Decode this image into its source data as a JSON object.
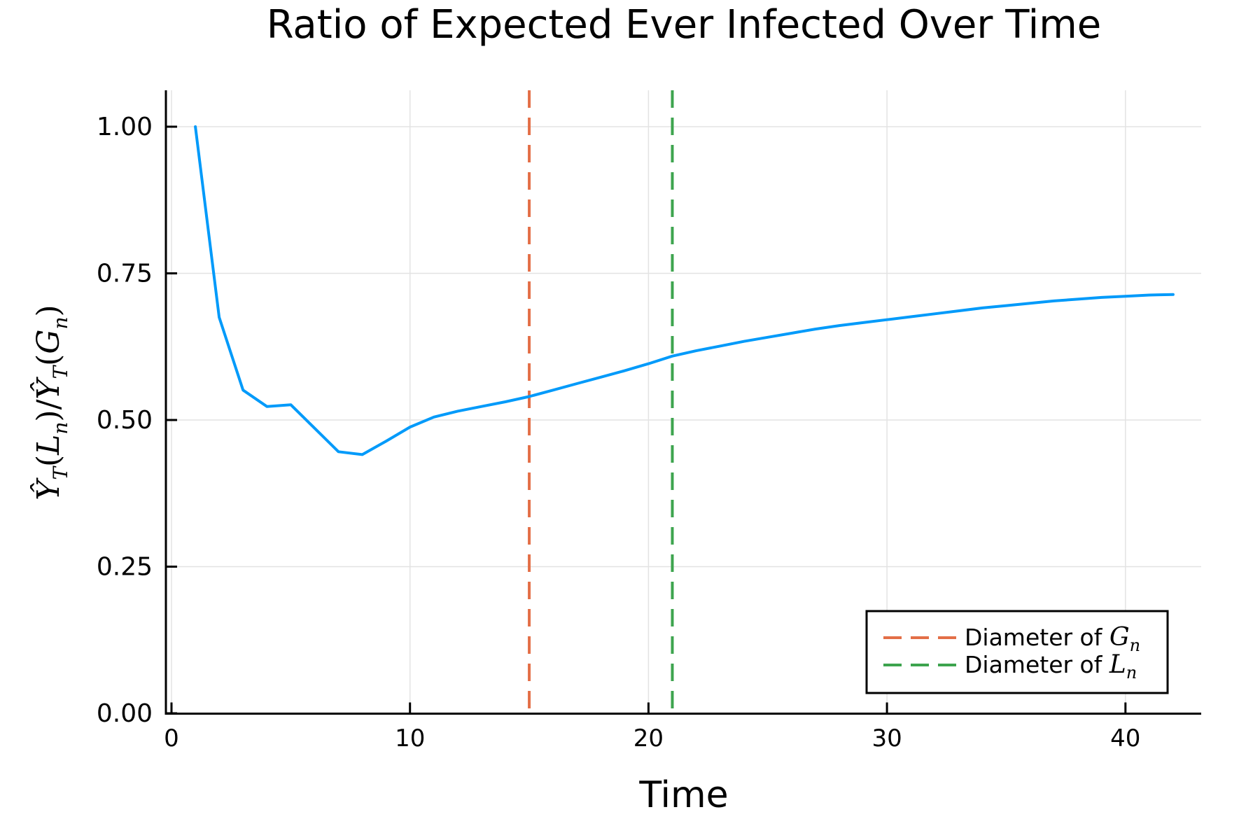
{
  "chart_data": {
    "type": "line",
    "title": "Ratio of Expected Ever Infected Over Time",
    "x_axis": {
      "label": "Time",
      "range_shown": [
        0,
        43
      ],
      "ticks": [
        {
          "value": 0,
          "label": "0"
        },
        {
          "value": 10,
          "label": "10"
        },
        {
          "value": 20,
          "label": "20"
        },
        {
          "value": 30,
          "label": "30"
        },
        {
          "value": 40,
          "label": "40"
        }
      ]
    },
    "y_axis": {
      "label": "Ŷ_T(L_n)/Ŷ_T(G_n)",
      "label_parts": [
        {
          "t": "Ŷ",
          "k": "it"
        },
        {
          "t": "T",
          "k": "sub"
        },
        {
          "t": "(",
          "k": "up"
        },
        {
          "t": "L",
          "k": "it"
        },
        {
          "t": "n",
          "k": "sub"
        },
        {
          "t": ")/",
          "k": "up"
        },
        {
          "t": "Ŷ",
          "k": "it"
        },
        {
          "t": "T",
          "k": "sub"
        },
        {
          "t": "(",
          "k": "up"
        },
        {
          "t": "G",
          "k": "it"
        },
        {
          "t": "n",
          "k": "sub"
        },
        {
          "t": ")",
          "k": "up"
        }
      ],
      "range_shown": [
        0.0,
        1.06
      ],
      "ticks": [
        {
          "value": 0.0,
          "label": "0.00"
        },
        {
          "value": 0.25,
          "label": "0.25"
        },
        {
          "value": 0.5,
          "label": "0.50"
        },
        {
          "value": 0.75,
          "label": "0.75"
        },
        {
          "value": 1.0,
          "label": "1.00"
        }
      ]
    },
    "grid": true,
    "series": [
      {
        "color": "#009AFA",
        "style": "solid",
        "x": [
          1,
          2,
          3,
          4,
          5,
          6,
          7,
          8,
          9,
          10,
          11,
          12,
          13,
          14,
          15,
          16,
          17,
          18,
          19,
          20,
          21,
          22,
          23,
          24,
          25,
          26,
          27,
          28,
          29,
          30,
          31,
          32,
          33,
          34,
          35,
          36,
          37,
          38,
          39,
          40,
          41,
          42
        ],
        "y": [
          1.0,
          0.675,
          0.551,
          0.523,
          0.526,
          0.486,
          0.446,
          0.441,
          0.464,
          0.488,
          0.505,
          0.515,
          0.523,
          0.531,
          0.54,
          0.551,
          0.562,
          0.573,
          0.584,
          0.596,
          0.609,
          0.618,
          0.626,
          0.634,
          0.641,
          0.648,
          0.655,
          0.661,
          0.666,
          0.671,
          0.676,
          0.681,
          0.686,
          0.691,
          0.695,
          0.699,
          0.703,
          0.706,
          0.709,
          0.711,
          0.713,
          0.714
        ]
      }
    ],
    "vlines": [
      {
        "x": 15,
        "color": "#E36F47",
        "style": "dashed",
        "label": "Diameter of Gₙ",
        "label_parts": [
          {
            "t": "Diameter of ",
            "k": "sans"
          },
          {
            "t": "G",
            "k": "it"
          },
          {
            "t": "n",
            "k": "sub"
          }
        ]
      },
      {
        "x": 21,
        "color": "#3DA44E",
        "style": "dashed",
        "label": "Diameter of Lₙ",
        "label_parts": [
          {
            "t": "Diameter of ",
            "k": "sans"
          },
          {
            "t": "L",
            "k": "it"
          },
          {
            "t": "n",
            "k": "sub"
          }
        ]
      }
    ],
    "legend": {
      "position": "bottom-right",
      "background": "#FFFFFF",
      "border_color": "#000000"
    },
    "colors": {
      "axis": "#000000",
      "grid": "#E3E3E3",
      "text": "#000000"
    }
  }
}
